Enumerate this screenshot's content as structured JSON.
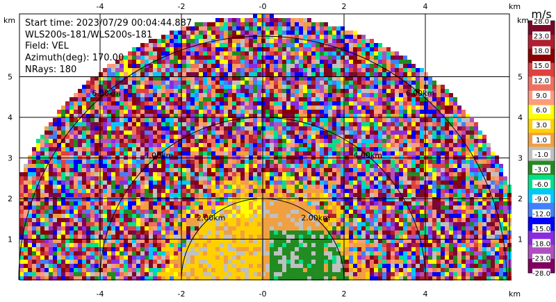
{
  "info": {
    "start_time": "Start time: 2023/07/29 00:04:44.887",
    "instrument": "WLS200s-181/WLS200s-181",
    "field": "Field: VEL",
    "azimuth": "Azimuth(deg): 170.00",
    "nrays": "NRays: 180"
  },
  "axes": {
    "unit_label": "km",
    "x_ticks": [
      "-4",
      "-2",
      "-0",
      "2",
      "4"
    ],
    "y_ticks": [
      "1",
      "2",
      "3",
      "4",
      "5"
    ]
  },
  "range_rings": [
    "2.00km",
    "4.00km",
    "6.00km"
  ],
  "colorbar": {
    "unit": "m/s",
    "labels": [
      "28.0",
      "23.0",
      "18.0",
      "15.0",
      "12.0",
      "9.0",
      "6.0",
      "3.0",
      "1.0",
      "-1.0",
      "-3.0",
      "-6.0",
      "-9.0",
      "-12.0",
      "-15.0",
      "-18.0",
      "-23.0",
      "-28.0"
    ],
    "colors": [
      "#7a0a2a",
      "#b02030",
      "#8b0000",
      "#e04040",
      "#f07060",
      "#ff9a80",
      "#ffff00",
      "#ffd000",
      "#f0a040",
      "#c0c0c0",
      "#228b22",
      "#00e08a",
      "#00c8ff",
      "#4080ff",
      "#0000ff",
      "#8a2be2",
      "#b050c0",
      "#800060"
    ]
  }
}
